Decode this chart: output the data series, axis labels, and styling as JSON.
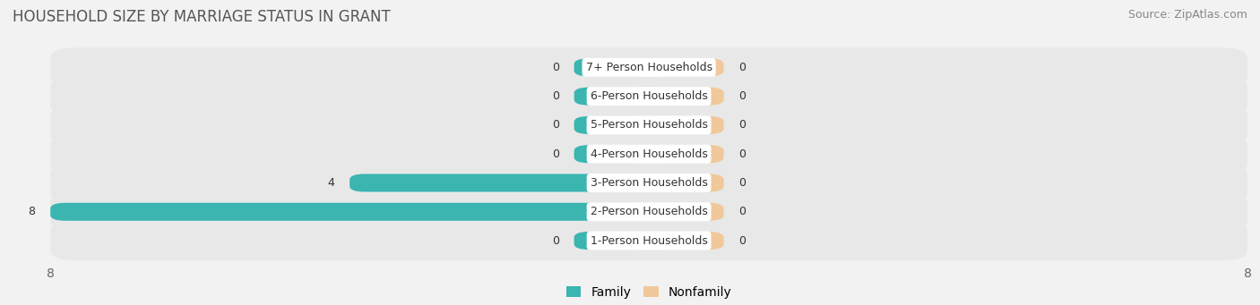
{
  "title": "HOUSEHOLD SIZE BY MARRIAGE STATUS IN GRANT",
  "source": "Source: ZipAtlas.com",
  "categories": [
    "7+ Person Households",
    "6-Person Households",
    "5-Person Households",
    "4-Person Households",
    "3-Person Households",
    "2-Person Households",
    "1-Person Households"
  ],
  "family_values": [
    0,
    0,
    0,
    0,
    4,
    8,
    0
  ],
  "nonfamily_values": [
    0,
    0,
    0,
    0,
    0,
    0,
    0
  ],
  "family_color": "#3ab5b0",
  "nonfamily_color": "#f0c89a",
  "xlim": [
    -8,
    8
  ],
  "bar_height": 0.62,
  "background_color": "#f2f2f2",
  "row_bg_color": "#e8e8e8",
  "label_bg_color": "#ffffff",
  "title_fontsize": 12,
  "source_fontsize": 9,
  "tick_fontsize": 10,
  "label_fontsize": 9,
  "min_bar_size": 1.0
}
